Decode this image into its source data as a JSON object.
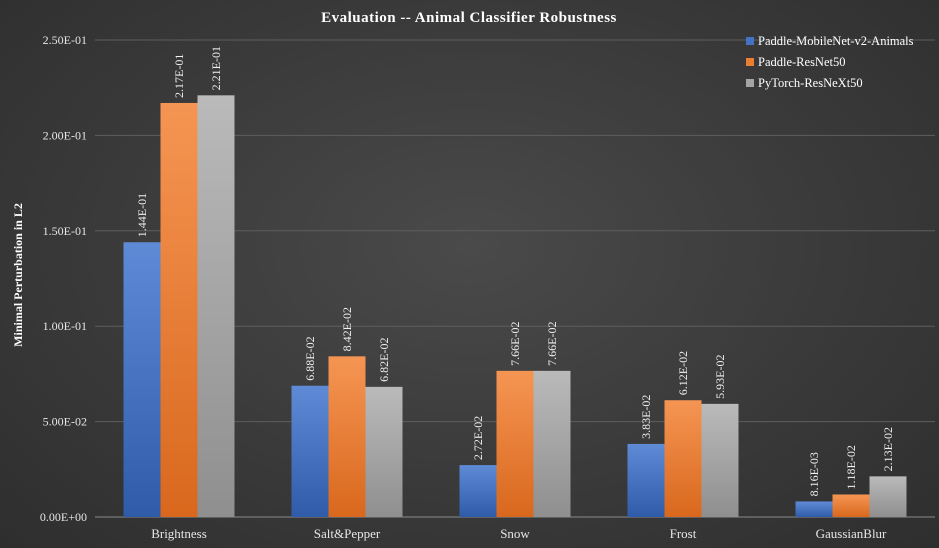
{
  "chart_data": {
    "type": "bar",
    "title": "Evaluation -- Animal Classifier Robustness",
    "ylabel": "Minimal Perturbation in L2",
    "xlabel": "",
    "ylim": [
      0,
      0.25
    ],
    "yticks": [
      0,
      0.05,
      0.1,
      0.15,
      0.2,
      0.25
    ],
    "ytick_labels": [
      "0.00E+00",
      "5.00E-02",
      "1.00E-01",
      "1.50E-01",
      "2.00E-01",
      "2.50E-01"
    ],
    "grid": true,
    "legend_position": "top-right",
    "categories": [
      "Brightness",
      "Salt&Pepper",
      "Snow",
      "Frost",
      "GaussianBlur"
    ],
    "series": [
      {
        "name": "Paddle-MobileNet-v2-Animals",
        "color": "#4472c4",
        "values": [
          0.144,
          0.0688,
          0.0272,
          0.0383,
          0.00816
        ],
        "labels": [
          "1.44E-01",
          "6.88E-02",
          "2.72E-02",
          "3.83E-02",
          "8.16E-03"
        ]
      },
      {
        "name": "Paddle-ResNet50",
        "color": "#ed7d31",
        "values": [
          0.217,
          0.0842,
          0.0766,
          0.0612,
          0.0118
        ],
        "labels": [
          "2.17E-01",
          "8.42E-02",
          "7.66E-02",
          "6.12E-02",
          "1.18E-02"
        ]
      },
      {
        "name": "PyTorch-ResNeXt50",
        "color": "#a5a5a5",
        "values": [
          0.221,
          0.0682,
          0.0766,
          0.0593,
          0.0213
        ],
        "labels": [
          "2.21E-01",
          "6.82E-02",
          "7.66E-02",
          "5.93E-02",
          "2.13E-02"
        ]
      }
    ]
  }
}
